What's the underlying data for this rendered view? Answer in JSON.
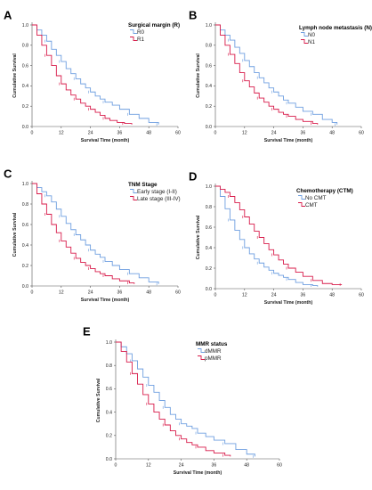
{
  "colors": {
    "blue": "#6f9fe0",
    "red": "#d81b4a",
    "axis": "#555555"
  },
  "chart_data": [
    {
      "type": "line",
      "letter": "A",
      "xlabel": "Survival Time (month)",
      "ylabel": "Cumulative Survival",
      "xlim": [
        0,
        60
      ],
      "ylim": [
        0,
        1
      ],
      "xticks": [
        0,
        12,
        24,
        36,
        48,
        60
      ],
      "yticks": [
        0.0,
        0.2,
        0.4,
        0.6,
        0.8,
        1.0
      ],
      "legend_title": "Surgical margin (R)",
      "series": [
        {
          "name": "R0",
          "color": "blue",
          "x": [
            0,
            2,
            4,
            6,
            8,
            10,
            12,
            14,
            16,
            18,
            20,
            22,
            24,
            26,
            28,
            30,
            33,
            36,
            40,
            44,
            48,
            52
          ],
          "y": [
            1.0,
            0.95,
            0.9,
            0.84,
            0.76,
            0.7,
            0.64,
            0.57,
            0.52,
            0.47,
            0.42,
            0.38,
            0.34,
            0.3,
            0.27,
            0.24,
            0.21,
            0.17,
            0.12,
            0.08,
            0.04,
            0.02
          ]
        },
        {
          "name": "R1",
          "color": "red",
          "x": [
            0,
            2,
            4,
            6,
            8,
            10,
            12,
            14,
            16,
            18,
            20,
            22,
            24,
            26,
            28,
            30,
            32,
            35,
            38,
            41
          ],
          "y": [
            1.0,
            0.9,
            0.8,
            0.7,
            0.6,
            0.5,
            0.42,
            0.36,
            0.31,
            0.27,
            0.23,
            0.2,
            0.17,
            0.14,
            0.11,
            0.08,
            0.06,
            0.04,
            0.03,
            0.02
          ]
        }
      ]
    },
    {
      "type": "line",
      "letter": "B",
      "xlabel": "Survival Time (month)",
      "ylabel": "Cumulative Survival",
      "xlim": [
        0,
        60
      ],
      "ylim": [
        0,
        1
      ],
      "xticks": [
        0,
        12,
        24,
        36,
        48,
        60
      ],
      "yticks": [
        0.0,
        0.2,
        0.4,
        0.6,
        0.8,
        1.0
      ],
      "legend_title": "Lymph node metastasis (N)",
      "series": [
        {
          "name": "N0",
          "color": "blue",
          "x": [
            0,
            2,
            4,
            6,
            8,
            10,
            12,
            14,
            16,
            18,
            20,
            22,
            24,
            26,
            28,
            30,
            33,
            36,
            40,
            44,
            48,
            50
          ],
          "y": [
            1.0,
            0.95,
            0.9,
            0.85,
            0.78,
            0.72,
            0.65,
            0.59,
            0.53,
            0.48,
            0.43,
            0.38,
            0.34,
            0.3,
            0.26,
            0.23,
            0.19,
            0.15,
            0.12,
            0.07,
            0.04,
            0.02
          ]
        },
        {
          "name": "N1",
          "color": "red",
          "x": [
            0,
            2,
            4,
            6,
            8,
            10,
            12,
            14,
            16,
            18,
            20,
            22,
            24,
            26,
            28,
            30,
            33,
            36,
            40,
            42
          ],
          "y": [
            1.0,
            0.9,
            0.8,
            0.71,
            0.62,
            0.53,
            0.45,
            0.39,
            0.33,
            0.28,
            0.24,
            0.2,
            0.17,
            0.14,
            0.12,
            0.1,
            0.07,
            0.05,
            0.03,
            0.02
          ]
        }
      ]
    },
    {
      "type": "line",
      "letter": "C",
      "xlabel": "Survival Time (month)",
      "ylabel": "Cumulative Survival",
      "xlim": [
        0,
        60
      ],
      "ylim": [
        0,
        1
      ],
      "xticks": [
        0,
        12,
        24,
        36,
        48,
        60
      ],
      "yticks": [
        0.0,
        0.2,
        0.4,
        0.6,
        0.8,
        1.0
      ],
      "legend_title": "TNM Stage",
      "series": [
        {
          "name": "Early stage (I-II)",
          "color": "blue",
          "x": [
            0,
            2,
            4,
            6,
            8,
            10,
            12,
            14,
            16,
            18,
            20,
            22,
            24,
            26,
            28,
            30,
            33,
            36,
            40,
            44,
            48,
            52
          ],
          "y": [
            1.0,
            0.96,
            0.92,
            0.88,
            0.82,
            0.75,
            0.68,
            0.61,
            0.55,
            0.5,
            0.45,
            0.4,
            0.35,
            0.31,
            0.28,
            0.24,
            0.2,
            0.16,
            0.12,
            0.08,
            0.04,
            0.02
          ]
        },
        {
          "name": "Late stage (III-IV)",
          "color": "red",
          "x": [
            0,
            2,
            4,
            6,
            8,
            10,
            12,
            14,
            16,
            18,
            20,
            22,
            24,
            26,
            28,
            30,
            33,
            36,
            40,
            42
          ],
          "y": [
            1.0,
            0.9,
            0.8,
            0.7,
            0.6,
            0.52,
            0.44,
            0.38,
            0.32,
            0.27,
            0.23,
            0.2,
            0.17,
            0.14,
            0.12,
            0.1,
            0.07,
            0.05,
            0.03,
            0.02
          ]
        }
      ]
    },
    {
      "type": "line",
      "letter": "D",
      "xlabel": "Survival Time (month)",
      "ylabel": "Cumulative Survival",
      "xlim": [
        0,
        60
      ],
      "ylim": [
        0,
        1
      ],
      "xticks": [
        0,
        12,
        24,
        36,
        48,
        60
      ],
      "yticks": [
        0.0,
        0.2,
        0.4,
        0.6,
        0.8,
        1.0
      ],
      "legend_title": "Chemotherapy (CTM)",
      "series": [
        {
          "name": "No CMT",
          "color": "blue",
          "x": [
            0,
            2,
            4,
            6,
            8,
            10,
            12,
            14,
            16,
            18,
            20,
            22,
            24,
            26,
            28,
            30,
            33,
            36,
            40,
            42
          ],
          "y": [
            1.0,
            0.9,
            0.78,
            0.67,
            0.57,
            0.48,
            0.4,
            0.34,
            0.29,
            0.25,
            0.21,
            0.18,
            0.15,
            0.13,
            0.11,
            0.09,
            0.06,
            0.04,
            0.03,
            0.02
          ]
        },
        {
          "name": "CMT",
          "color": "red",
          "x": [
            0,
            2,
            4,
            6,
            8,
            10,
            12,
            14,
            16,
            18,
            20,
            22,
            24,
            26,
            28,
            30,
            33,
            36,
            40,
            44,
            48,
            52
          ],
          "y": [
            1.0,
            0.97,
            0.94,
            0.9,
            0.84,
            0.77,
            0.7,
            0.63,
            0.56,
            0.5,
            0.44,
            0.38,
            0.33,
            0.28,
            0.24,
            0.2,
            0.16,
            0.12,
            0.08,
            0.05,
            0.04,
            0.04
          ]
        }
      ]
    },
    {
      "type": "line",
      "letter": "E",
      "xlabel": "Survival Time (month)",
      "ylabel": "Cumulative Survival",
      "xlim": [
        0,
        60
      ],
      "ylim": [
        0,
        1
      ],
      "xticks": [
        0,
        12,
        24,
        36,
        48,
        60
      ],
      "yticks": [
        0.0,
        0.2,
        0.4,
        0.6,
        0.8,
        1.0
      ],
      "legend_title": "MMR status",
      "series": [
        {
          "name": "dMMR",
          "color": "blue",
          "x": [
            0,
            2,
            4,
            6,
            8,
            10,
            12,
            14,
            16,
            18,
            20,
            22,
            24,
            26,
            28,
            30,
            33,
            36,
            40,
            44,
            48,
            51
          ],
          "y": [
            1.0,
            0.96,
            0.9,
            0.84,
            0.77,
            0.7,
            0.63,
            0.57,
            0.5,
            0.44,
            0.38,
            0.34,
            0.3,
            0.28,
            0.26,
            0.22,
            0.19,
            0.16,
            0.13,
            0.08,
            0.04,
            0.02
          ]
        },
        {
          "name": "pMMR",
          "color": "red",
          "x": [
            0,
            2,
            4,
            6,
            8,
            10,
            12,
            14,
            16,
            18,
            20,
            22,
            24,
            26,
            28,
            30,
            33,
            36,
            40,
            42
          ],
          "y": [
            1.0,
            0.92,
            0.83,
            0.73,
            0.64,
            0.55,
            0.47,
            0.4,
            0.34,
            0.29,
            0.24,
            0.2,
            0.17,
            0.14,
            0.12,
            0.1,
            0.07,
            0.05,
            0.03,
            0.02
          ]
        }
      ]
    }
  ]
}
